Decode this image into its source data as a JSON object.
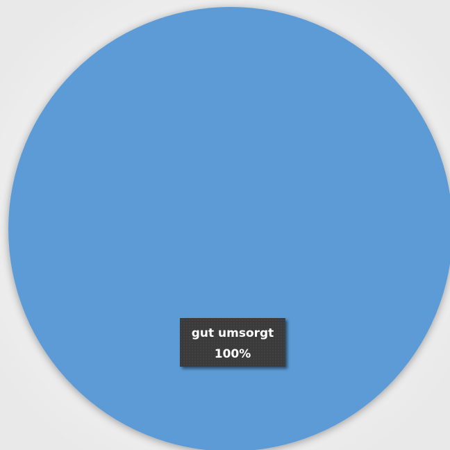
{
  "chart_data": {
    "type": "pie",
    "title": "",
    "slices": [
      {
        "label": "gut umsorgt",
        "value": 100,
        "percent_label": "100%",
        "color": "#5b9bd5"
      }
    ],
    "legend": "none",
    "background_color": "#f1f1f1",
    "label_box_color": "#3b3b3b",
    "label_text_color": "#ffffff"
  }
}
